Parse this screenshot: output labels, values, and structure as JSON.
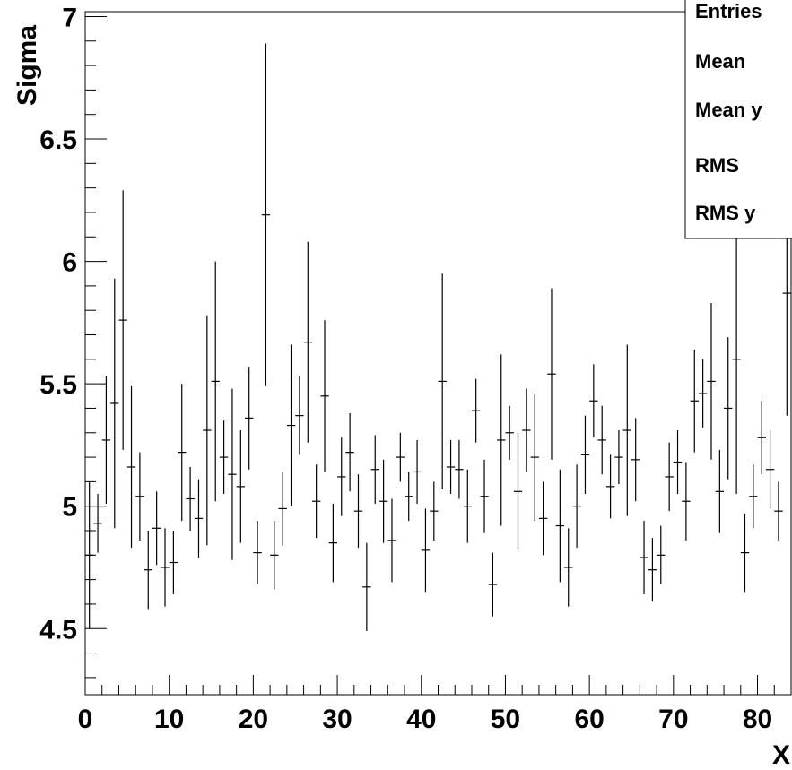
{
  "chart_data": {
    "type": "scatter",
    "title": "",
    "xlabel": "X",
    "ylabel": "Sigma",
    "xlim": [
      0,
      84
    ],
    "ylim": [
      4.23,
      7.02
    ],
    "xticks": [
      0,
      10,
      20,
      30,
      40,
      50,
      60,
      70,
      80
    ],
    "yticks": [
      4.5,
      5,
      5.5,
      6,
      6.5,
      7
    ],
    "xtick_labels": [
      "0",
      "10",
      "20",
      "30",
      "40",
      "50",
      "60",
      "70",
      "80"
    ],
    "ytick_labels": [
      "4.5",
      "5",
      "5.5",
      "6",
      "6.5",
      "7"
    ],
    "grid": false,
    "stats_box": {
      "position": "top-right",
      "labels": [
        "Entries",
        "Mean",
        "Mean y",
        "RMS",
        "RMS y"
      ]
    },
    "series": [
      {
        "marker": "cross-with-error-bars",
        "x": [
          0.5,
          1.5,
          2.5,
          3.5,
          4.5,
          5.5,
          6.5,
          7.5,
          8.5,
          9.5,
          10.5,
          11.5,
          12.5,
          13.5,
          14.5,
          15.5,
          16.5,
          17.5,
          18.5,
          19.5,
          20.5,
          21.5,
          22.5,
          23.5,
          24.5,
          25.5,
          26.5,
          27.5,
          28.5,
          29.5,
          30.5,
          31.5,
          32.5,
          33.5,
          34.5,
          35.5,
          36.5,
          37.5,
          38.5,
          39.5,
          40.5,
          41.5,
          42.5,
          43.5,
          44.5,
          45.5,
          46.5,
          47.5,
          48.5,
          49.5,
          50.5,
          51.5,
          52.5,
          53.5,
          54.5,
          55.5,
          56.5,
          57.5,
          58.5,
          59.5,
          60.5,
          61.5,
          62.5,
          63.5,
          64.5,
          65.5,
          66.5,
          67.5,
          68.5,
          69.5,
          70.5,
          71.5,
          72.5,
          73.5,
          74.5,
          75.5,
          76.5,
          77.5,
          78.5,
          79.5,
          80.5,
          81.5,
          82.5,
          83.5
        ],
        "y": [
          4.8,
          4.93,
          5.27,
          5.42,
          5.76,
          5.16,
          5.04,
          4.74,
          4.91,
          4.75,
          4.77,
          5.22,
          5.03,
          4.95,
          5.31,
          5.51,
          5.2,
          5.13,
          5.08,
          5.36,
          4.81,
          6.19,
          4.8,
          4.99,
          5.33,
          5.37,
          5.67,
          5.02,
          5.45,
          4.85,
          5.12,
          5.22,
          4.98,
          4.67,
          5.15,
          5.02,
          4.86,
          5.2,
          5.04,
          5.14,
          4.82,
          4.98,
          5.51,
          5.16,
          5.15,
          5.0,
          5.39,
          5.04,
          4.68,
          5.27,
          5.3,
          5.06,
          5.31,
          5.2,
          4.95,
          5.54,
          4.92,
          4.75,
          5.0,
          5.21,
          5.43,
          5.27,
          5.08,
          5.2,
          5.31,
          5.19,
          4.79,
          4.74,
          4.8,
          5.12,
          5.18,
          5.02,
          5.43,
          5.46,
          5.51,
          5.06,
          5.4,
          5.6,
          4.81,
          5.04,
          5.28,
          5.15,
          4.98,
          5.87
        ],
        "yerr": [
          0.3,
          0.12,
          0.26,
          0.51,
          0.53,
          0.33,
          0.18,
          0.16,
          0.15,
          0.16,
          0.13,
          0.28,
          0.13,
          0.16,
          0.47,
          0.49,
          0.15,
          0.35,
          0.23,
          0.21,
          0.13,
          0.7,
          0.14,
          0.15,
          0.33,
          0.16,
          0.41,
          0.15,
          0.31,
          0.16,
          0.16,
          0.16,
          0.15,
          0.18,
          0.14,
          0.17,
          0.17,
          0.1,
          0.1,
          0.13,
          0.17,
          0.12,
          0.44,
          0.11,
          0.12,
          0.15,
          0.13,
          0.15,
          0.13,
          0.35,
          0.11,
          0.24,
          0.17,
          0.26,
          0.15,
          0.35,
          0.23,
          0.16,
          0.17,
          0.16,
          0.15,
          0.14,
          0.13,
          0.11,
          0.35,
          0.17,
          0.15,
          0.13,
          0.12,
          0.14,
          0.13,
          0.16,
          0.21,
          0.14,
          0.32,
          0.17,
          0.29,
          0.55,
          0.16,
          0.13,
          0.15,
          0.16,
          0.12,
          0.5
        ]
      }
    ]
  }
}
